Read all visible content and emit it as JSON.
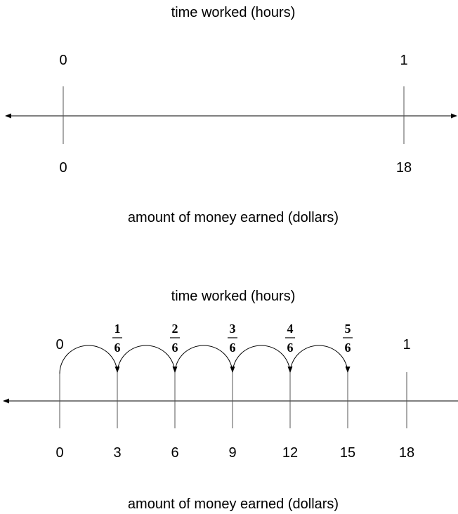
{
  "top_number_line": {
    "top_title": "time worked (hours)",
    "top_labels": [
      "0",
      "1"
    ],
    "bottom_labels": [
      "0",
      "18"
    ],
    "bottom_title": "amount of money earned (dollars)"
  },
  "bottom_number_line": {
    "top_title": "time worked (hours)",
    "top_start_label": "0",
    "fractions": [
      {
        "numerator": "1",
        "denominator": "6"
      },
      {
        "numerator": "2",
        "denominator": "6"
      },
      {
        "numerator": "3",
        "denominator": "6"
      },
      {
        "numerator": "4",
        "denominator": "6"
      },
      {
        "numerator": "5",
        "denominator": "6"
      }
    ],
    "top_end_label": "1",
    "bottom_labels": [
      "0",
      "3",
      "6",
      "9",
      "12",
      "15",
      "18"
    ],
    "bottom_title": "amount of money earned (dollars)"
  },
  "colors": {
    "ink": "#000000",
    "tick": "#555555",
    "background": "#ffffff"
  }
}
